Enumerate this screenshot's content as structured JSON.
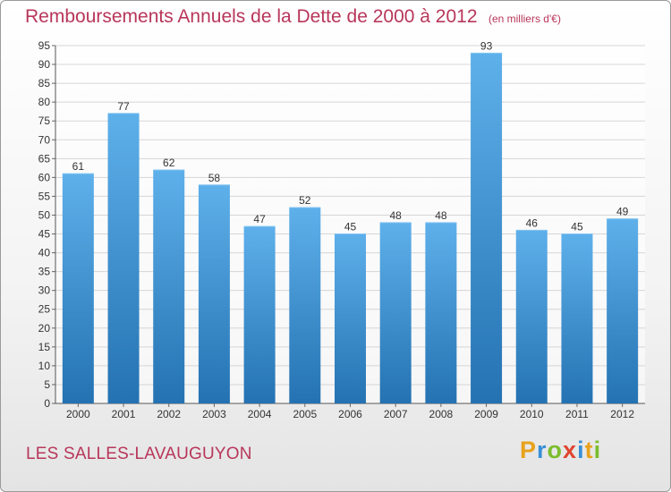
{
  "title": "Remboursements Annuels de la Dette de 2000 à 2012",
  "unit_note": "(en milliers d'€)",
  "commune": "LES SALLES-LAVAUGUYON",
  "logo": {
    "text": "Proxiti",
    "letter_colors": [
      "#e8a21c",
      "#3a8fd6",
      "#7bbd2e",
      "#e0452f",
      "#3a8fd6",
      "#e8a21c",
      "#7bbd2e"
    ]
  },
  "colors": {
    "title": "#b8365a",
    "bar_top": "#5eb0ea",
    "bar_bottom": "#2472b2",
    "grid": "#d6d6d6",
    "axis_text": "#333333"
  },
  "chart_data": {
    "type": "bar",
    "categories": [
      "2000",
      "2001",
      "2002",
      "2003",
      "2004",
      "2005",
      "2006",
      "2007",
      "2008",
      "2009",
      "2010",
      "2011",
      "2012"
    ],
    "values": [
      61,
      77,
      62,
      58,
      47,
      52,
      45,
      48,
      48,
      93,
      46,
      45,
      49
    ],
    "ylim": [
      0,
      95
    ],
    "ytick_step": 5,
    "yticks": [
      "0",
      "5",
      "10",
      "15",
      "20",
      "25",
      "30",
      "35",
      "40",
      "45",
      "50",
      "55",
      "60",
      "65",
      "70",
      "75",
      "80",
      "85",
      "90",
      "95"
    ],
    "grid": true,
    "data_labels": true
  }
}
